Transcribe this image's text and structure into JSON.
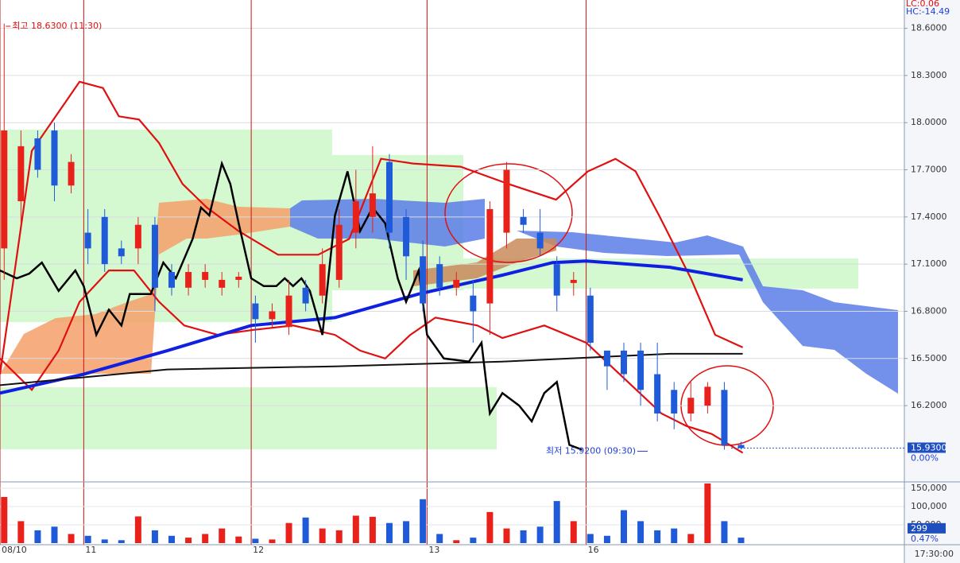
{
  "chart_data": [
    {
      "type": "candlestick",
      "header_left": "LC:0.06",
      "header_right": "HC:-14.49",
      "high_note": "최고 18.6300 (11:30)",
      "low_note": "최저 15.9200 (09:30)",
      "time_label": "17:30:00",
      "last": {
        "value": 15.93,
        "label": "15.9300"
      },
      "last_change": "0.00%",
      "xlim": [
        0,
        108
      ],
      "xticks": [
        {
          "value": 0,
          "label": "08/10"
        },
        {
          "value": 10,
          "label": "11"
        },
        {
          "value": 30,
          "label": "12"
        },
        {
          "value": 51,
          "label": "13"
        },
        {
          "value": 70,
          "label": "16"
        }
      ],
      "ylim": [
        15.72,
        18.78
      ],
      "yticks": [
        {
          "value": 18.6,
          "label": "18.6000"
        },
        {
          "value": 18.3,
          "label": "18.3000"
        },
        {
          "value": 18.0,
          "label": "18.0000"
        },
        {
          "value": 17.7,
          "label": "17.7000"
        },
        {
          "value": 17.4,
          "label": "17.4000"
        },
        {
          "value": 17.1,
          "label": "17.1000"
        },
        {
          "value": 16.8,
          "label": "16.8000"
        },
        {
          "value": 16.5,
          "label": "16.5000"
        },
        {
          "value": 16.2,
          "label": "16.2000"
        }
      ],
      "grid": true,
      "up_color": "#e8211a",
      "down_color": "#1f5bd8",
      "x": [
        0.5,
        2.5,
        4.5,
        6.5,
        8.5,
        10.5,
        12.5,
        14.5,
        16.5,
        18.5,
        20.5,
        22.5,
        24.5,
        26.5,
        28.5,
        30.5,
        32.5,
        34.5,
        36.5,
        38.5,
        40.5,
        42.5,
        44.5,
        46.5,
        48.5,
        50.5,
        52.5,
        54.5,
        56.5,
        58.5,
        60.5,
        62.5,
        64.5,
        66.5,
        68.5,
        70.5,
        72.5,
        74.5,
        76.5,
        78.5,
        80.5,
        82.5,
        84.5,
        86.5,
        88.5
      ],
      "open": [
        17.2,
        17.5,
        17.9,
        17.95,
        17.6,
        17.3,
        17.4,
        17.2,
        17.2,
        17.35,
        17.05,
        16.95,
        17.0,
        16.95,
        17.0,
        16.85,
        16.75,
        16.7,
        16.95,
        16.9,
        17.0,
        17.3,
        17.4,
        17.75,
        17.4,
        17.15,
        17.1,
        16.95,
        16.9,
        16.85,
        17.3,
        17.4,
        17.3,
        17.1,
        16.98,
        16.9,
        16.55,
        16.55,
        16.55,
        16.4,
        16.3,
        16.15,
        16.2,
        16.3,
        15.95
      ],
      "high": [
        18.63,
        17.95,
        17.95,
        18.0,
        17.8,
        17.45,
        17.45,
        17.25,
        17.4,
        17.4,
        17.1,
        17.1,
        17.1,
        17.05,
        17.05,
        16.9,
        16.85,
        17.0,
        17.0,
        17.2,
        17.45,
        17.7,
        17.85,
        17.8,
        17.45,
        17.25,
        17.15,
        17.05,
        17.0,
        17.5,
        17.75,
        17.45,
        17.45,
        17.15,
        17.05,
        16.95,
        16.55,
        16.6,
        16.6,
        16.6,
        16.35,
        16.35,
        16.35,
        16.35,
        15.97
      ],
      "low": [
        17.0,
        17.35,
        17.65,
        17.5,
        17.55,
        17.1,
        17.05,
        17.1,
        17.1,
        16.8,
        16.9,
        16.9,
        16.95,
        16.9,
        16.95,
        16.6,
        16.7,
        16.65,
        16.8,
        16.85,
        16.95,
        17.2,
        17.3,
        17.2,
        17.0,
        16.8,
        16.9,
        16.9,
        16.6,
        16.65,
        17.2,
        17.3,
        17.15,
        16.8,
        16.9,
        16.55,
        16.3,
        16.35,
        16.2,
        16.1,
        16.05,
        16.1,
        16.15,
        15.92,
        15.92
      ],
      "close": [
        17.95,
        17.85,
        17.7,
        17.6,
        17.75,
        17.2,
        17.1,
        17.15,
        17.35,
        16.95,
        16.95,
        17.05,
        17.05,
        17.0,
        17.02,
        16.75,
        16.8,
        16.9,
        16.85,
        17.1,
        17.35,
        17.5,
        17.55,
        17.3,
        17.15,
        16.85,
        16.95,
        17.0,
        16.8,
        17.45,
        17.7,
        17.35,
        17.2,
        16.9,
        17.0,
        16.6,
        16.45,
        16.4,
        16.3,
        16.15,
        16.15,
        16.25,
        16.32,
        15.95,
        15.93
      ],
      "lines": [
        {
          "color": "#e01010",
          "x": [
            0,
            3.8,
            9.5,
            12.3,
            14.2,
            16.6,
            19,
            21.8,
            24.7,
            28.5,
            33.2,
            38,
            41.7,
            45.5,
            49.3,
            55,
            60.7,
            66.4,
            70.2,
            73.5,
            75.9,
            78.7,
            82.5,
            85.4,
            88.7
          ],
          "values": [
            16.4,
            17.82,
            18.26,
            18.22,
            18.04,
            18.02,
            17.87,
            17.61,
            17.46,
            17.31,
            17.16,
            17.16,
            17.26,
            17.77,
            17.74,
            17.72,
            17.61,
            17.51,
            17.69,
            17.77,
            17.69,
            17.41,
            17.01,
            16.65,
            16.57
          ]
        },
        {
          "color": "#e01010",
          "x": [
            0,
            3.8,
            7,
            9.5,
            13,
            16,
            19,
            22,
            26,
            30,
            35,
            40,
            43,
            46,
            49,
            52,
            57,
            60,
            65,
            70,
            73,
            76,
            79,
            82,
            85,
            88.7
          ],
          "values": [
            16.5,
            16.3,
            16.55,
            16.86,
            17.06,
            17.06,
            16.86,
            16.71,
            16.65,
            16.68,
            16.71,
            16.65,
            16.55,
            16.5,
            16.65,
            16.76,
            16.71,
            16.63,
            16.71,
            16.6,
            16.45,
            16.3,
            16.15,
            16.07,
            16.02,
            15.9
          ]
        },
        {
          "color": "#1020e0",
          "x": [
            0,
            10,
            20,
            30,
            40,
            50,
            60,
            66,
            70,
            80,
            88.7
          ],
          "values": [
            16.28,
            16.4,
            16.55,
            16.71,
            16.76,
            16.91,
            17.03,
            17.11,
            17.12,
            17.08,
            17.0
          ]
        },
        {
          "color": "#111111",
          "x": [
            0,
            20,
            40,
            60,
            80,
            88.7
          ],
          "values": [
            16.33,
            16.43,
            16.45,
            16.48,
            16.53,
            16.53
          ]
        },
        {
          "color": "#000000",
          "x": [
            0,
            2,
            3.5,
            5,
            7,
            9,
            10,
            11.5,
            13,
            14.5,
            15.5,
            18,
            19.5,
            21,
            23,
            24,
            25,
            26.5,
            27.5,
            28.5,
            30,
            31.5,
            33,
            34,
            35,
            36,
            37,
            38.5,
            40,
            41.5,
            43,
            44.5,
            46,
            47.5,
            48.5,
            50,
            51,
            53,
            56,
            57.5,
            58.5,
            60,
            62,
            63.5,
            65,
            66.5,
            68,
            69.5
          ],
          "values": [
            17.06,
            17.01,
            17.04,
            17.11,
            16.93,
            17.06,
            16.96,
            16.65,
            16.81,
            16.71,
            16.91,
            16.91,
            17.11,
            17.01,
            17.26,
            17.46,
            17.41,
            17.74,
            17.61,
            17.36,
            17.01,
            16.96,
            16.96,
            17.01,
            16.96,
            17.01,
            16.93,
            16.65,
            17.41,
            17.69,
            17.31,
            17.46,
            17.36,
            17.01,
            16.86,
            17.06,
            16.65,
            16.5,
            16.48,
            16.6,
            16.15,
            16.28,
            16.2,
            16.1,
            16.28,
            16.35,
            15.95,
            15.92
          ]
        }
      ]
    },
    {
      "type": "bar",
      "ylim": [
        0,
        163000
      ],
      "yticks": [
        {
          "value": 150000,
          "label": "150,000"
        },
        {
          "value": 100000,
          "label": "100,000"
        },
        {
          "value": 50000,
          "label": "50,000"
        }
      ],
      "last": 299,
      "last_change": "0.47%",
      "values": [
        126000,
        60000,
        35000,
        45000,
        25000,
        20000,
        10000,
        8000,
        73000,
        35000,
        20000,
        15000,
        25000,
        40000,
        18000,
        12000,
        10000,
        55000,
        70000,
        40000,
        35000,
        75000,
        72000,
        55000,
        60000,
        120000,
        25000,
        8000,
        15000,
        85000,
        40000,
        35000,
        45000,
        115000,
        60000,
        25000,
        20000,
        90000,
        60000,
        35000,
        40000,
        25000,
        163000,
        60000,
        15000
      ]
    }
  ]
}
